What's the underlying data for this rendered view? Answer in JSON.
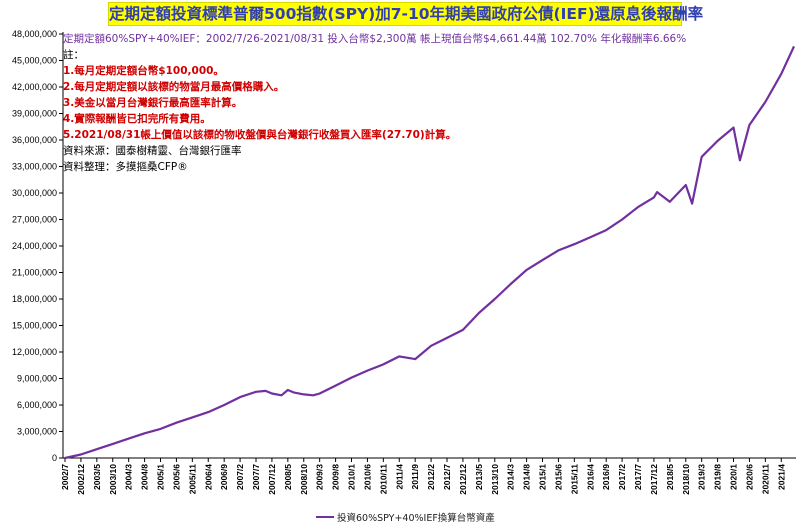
{
  "chart_data": {
    "type": "line",
    "title": "定期定額投資標準普爾500指數(SPY)加7-10年期美國政府公債(IEF)還原息後報酬率",
    "summary": "定期定額60%SPY+40%IEF：2002/7/26-2021/08/31   投入台幣$2,300萬   帳上現值台幣$4,661.44萬   102.70%   年化報酬率6.66%",
    "notes": {
      "header": "註：",
      "items": [
        "1.每月定期定額台幣$100,000。",
        "2.每月定期定額以該標的物當月最高價格購入。",
        "3.美金以當月台灣銀行最高匯率計算。",
        "4.實際報酬皆已扣完所有費用。",
        "5.2021/08/31帳上價值以該標的物收盤價與台灣銀行收盤買入匯率(27.70)計算。"
      ],
      "source": "資料來源：國泰樹精靈、台灣銀行匯率",
      "compiled": "資料整理：多摸摳桑CFP®"
    },
    "ylim": [
      0,
      48000000
    ],
    "yticks": [
      "0",
      "3,000,000",
      "6,000,000",
      "9,000,000",
      "12,000,000",
      "15,000,000",
      "18,000,000",
      "21,000,000",
      "24,000,000",
      "27,000,000",
      "30,000,000",
      "33,000,000",
      "36,000,000",
      "39,000,000",
      "42,000,000",
      "45,000,000",
      "48,000,000"
    ],
    "xticks": [
      "2002/7",
      "2002/12",
      "2003/5",
      "2003/10",
      "2004/3",
      "2004/8",
      "2005/1",
      "2005/6",
      "2005/11",
      "2006/4",
      "2006/9",
      "2007/2",
      "2007/7",
      "2007/12",
      "2008/5",
      "2008/10",
      "2009/3",
      "2009/8",
      "2010/1",
      "2010/6",
      "2010/11",
      "2011/4",
      "2011/9",
      "2012/2",
      "2012/7",
      "2012/12",
      "2013/5",
      "2013/10",
      "2014/3",
      "2014/8",
      "2015/1",
      "2015/6",
      "2015/11",
      "2016/4",
      "2016/9",
      "2017/2",
      "2017/7",
      "2017/12",
      "2018/5",
      "2018/10",
      "2019/3",
      "2019/8",
      "2020/1",
      "2020/6",
      "2020/11",
      "2021/4"
    ],
    "series": [
      {
        "name": "投資60%SPY+40%IEF換算台幣資產",
        "color": "#7030a0",
        "x": [
          "2002/7",
          "2002/12",
          "2003/5",
          "2003/10",
          "2004/3",
          "2004/8",
          "2005/1",
          "2005/6",
          "2005/11",
          "2006/4",
          "2006/9",
          "2007/2",
          "2007/7",
          "2007/10",
          "2007/12",
          "2008/3",
          "2008/5",
          "2008/7",
          "2008/10",
          "2009/1",
          "2009/3",
          "2009/8",
          "2010/1",
          "2010/6",
          "2010/11",
          "2011/4",
          "2011/9",
          "2012/2",
          "2012/7",
          "2012/12",
          "2013/5",
          "2013/10",
          "2014/3",
          "2014/8",
          "2015/1",
          "2015/6",
          "2015/11",
          "2016/4",
          "2016/9",
          "2017/2",
          "2017/7",
          "2017/12",
          "2018/1",
          "2018/5",
          "2018/10",
          "2018/12",
          "2019/3",
          "2019/8",
          "2020/1",
          "2020/3",
          "2020/6",
          "2020/11",
          "2021/4",
          "2021/8"
        ],
        "values": [
          0,
          400000,
          1000000,
          1600000,
          2200000,
          2800000,
          3300000,
          4000000,
          4600000,
          5200000,
          6000000,
          6900000,
          7500000,
          7600000,
          7300000,
          7100000,
          7700000,
          7400000,
          7200000,
          7100000,
          7300000,
          8200000,
          9100000,
          9900000,
          10600000,
          11500000,
          11200000,
          12700000,
          13600000,
          14500000,
          16400000,
          18000000,
          19700000,
          21300000,
          22400000,
          23500000,
          24200000,
          25000000,
          25800000,
          27000000,
          28400000,
          29500000,
          30100000,
          29000000,
          30900000,
          28800000,
          34100000,
          35900000,
          37400000,
          33700000,
          37700000,
          40300000,
          43500000,
          46600000
        ]
      }
    ]
  }
}
